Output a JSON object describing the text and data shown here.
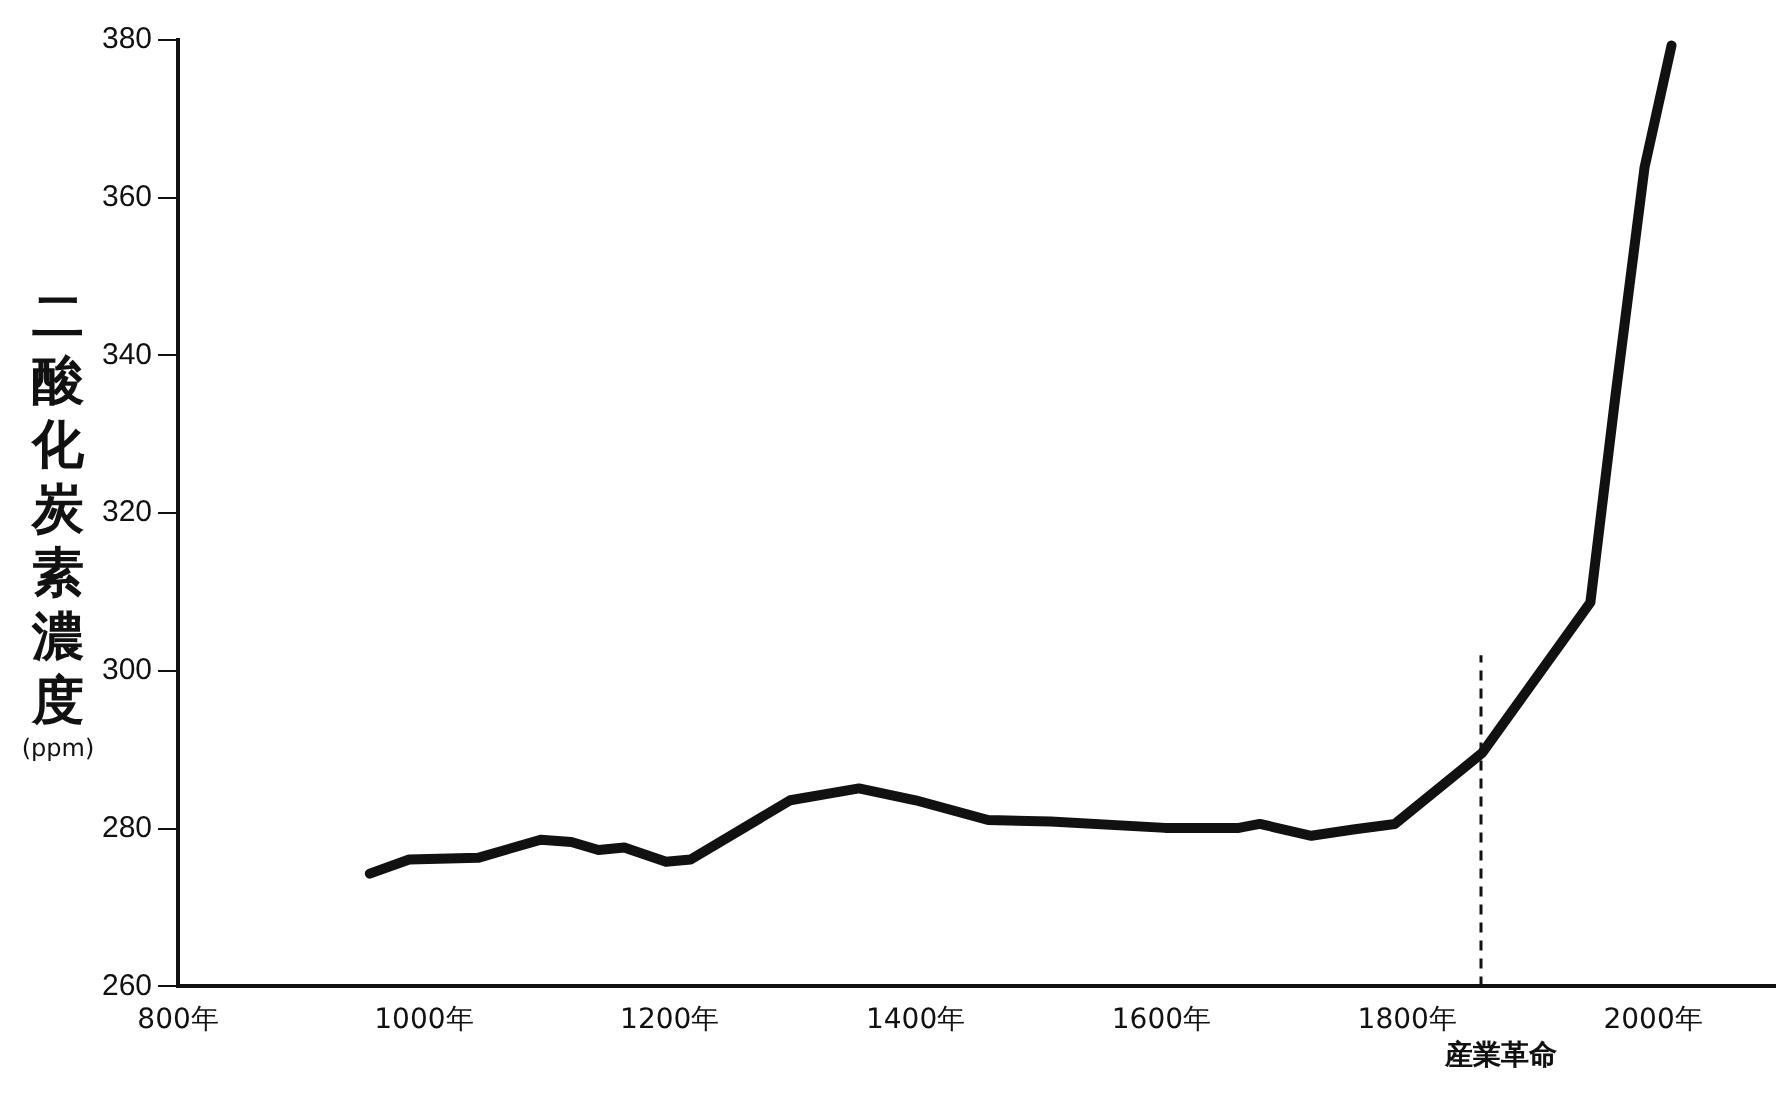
{
  "chart_data": {
    "type": "line",
    "ylabel": "二酸化炭素濃度(ppm)",
    "x": [
      956,
      988,
      1044,
      1095,
      1120,
      1142,
      1163,
      1197,
      1217,
      1298,
      1354,
      1400,
      1459,
      1510,
      1603,
      1663,
      1680,
      1722,
      1756,
      1790,
      1861,
      1949,
      1969,
      1993,
      2015
    ],
    "series": [
      {
        "color": "#111111",
        "values": [
          274.3,
          276.1,
          276.3,
          278.6,
          278.3,
          277.3,
          277.6,
          275.8,
          276.1,
          283.6,
          285.1,
          283.6,
          281.1,
          280.9,
          280.1,
          280.1,
          280.6,
          279.1,
          279.9,
          280.6,
          289.6,
          308.7,
          334.4,
          363.8,
          379.3
        ]
      }
    ],
    "xlim": [
      800,
      2100
    ],
    "xticks": [
      {
        "value": 800,
        "label": "800年"
      },
      {
        "value": 1000,
        "label": "1000年"
      },
      {
        "value": 1200,
        "label": "1200年"
      },
      {
        "value": 1400,
        "label": "1400年"
      },
      {
        "value": 1600,
        "label": "1600年"
      },
      {
        "value": 1800,
        "label": "1800年"
      },
      {
        "value": 2000,
        "label": "2000年"
      }
    ],
    "ylim": [
      260,
      380
    ],
    "yticks": [
      260,
      280,
      300,
      320,
      340,
      360,
      380
    ],
    "ref_lines": [
      {
        "axis": "x",
        "value": 1860,
        "label": "産業革命",
        "line_style": "dashed"
      }
    ],
    "grid": false,
    "legend": false,
    "marker": "none",
    "line_style": "solid"
  }
}
